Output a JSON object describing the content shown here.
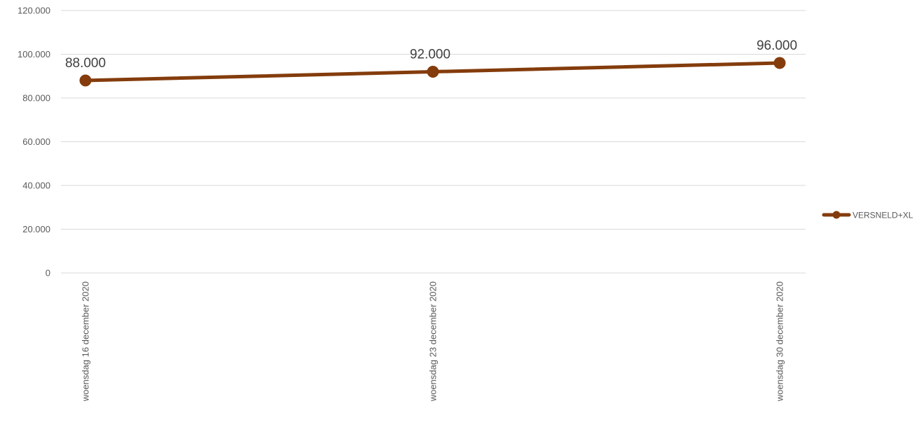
{
  "chart_data": {
    "type": "line",
    "title": "",
    "xlabel": "",
    "ylabel": "",
    "categories": [
      "woensdag 16 december 2020",
      "woensdag 23 december 2020",
      "woensdag 30 december 2020"
    ],
    "y_ticks": [
      "0",
      "20.000",
      "40.000",
      "60.000",
      "80.000",
      "100.000",
      "120.000"
    ],
    "y_tick_values": [
      0,
      20000,
      40000,
      60000,
      80000,
      100000,
      120000
    ],
    "ylim": [
      0,
      120000
    ],
    "grid": true,
    "legend_position": "right",
    "series": [
      {
        "name": "VERSNELD+XL",
        "color": "#843c0c",
        "values": [
          88000,
          92000,
          96000
        ],
        "data_labels": [
          "88.000",
          "92.000",
          "96.000"
        ]
      }
    ]
  }
}
